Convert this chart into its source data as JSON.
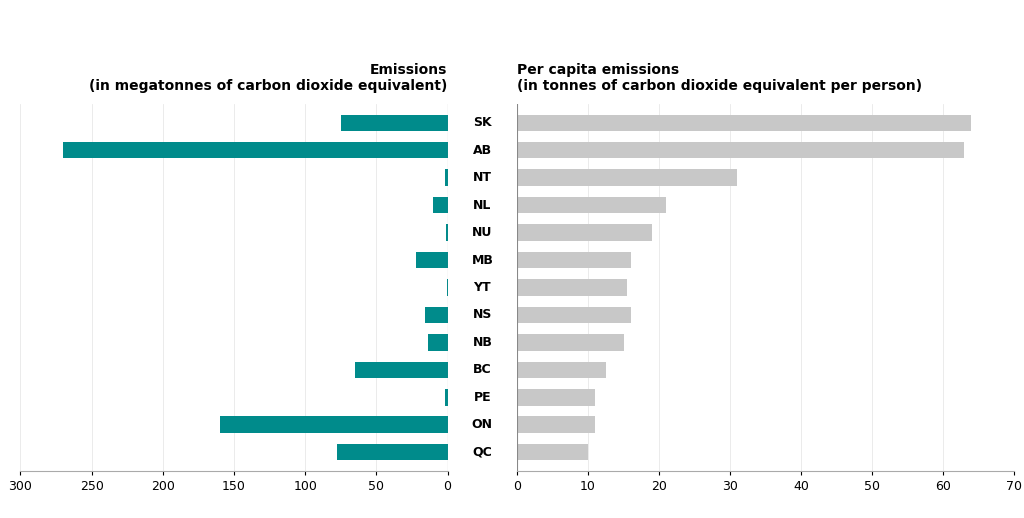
{
  "provinces": [
    "SK",
    "AB",
    "NT",
    "NL",
    "NU",
    "MB",
    "YT",
    "NS",
    "NB",
    "BC",
    "PE",
    "ON",
    "QC"
  ],
  "total_emissions": [
    75,
    270,
    1.5,
    10,
    1.0,
    22,
    0.6,
    16,
    14,
    65,
    2,
    160,
    78
  ],
  "per_capita": [
    64,
    63,
    31,
    21,
    19,
    16,
    15.5,
    16,
    15,
    12.5,
    11,
    11,
    10
  ],
  "teal_color": "#008B8B",
  "gray_color": "#C8C8C8",
  "left_title_line1": "Emissions",
  "left_title_line2": "(in megatonnes of carbon dioxide equivalent)",
  "right_title_line1": "Per capita emissions",
  "right_title_line2": "(in tonnes of carbon dioxide equivalent per person)",
  "left_xticks": [
    300,
    250,
    200,
    150,
    100,
    50,
    0
  ],
  "right_xlim": [
    0,
    70
  ],
  "right_xticks": [
    0,
    10,
    20,
    30,
    40,
    50,
    60,
    70
  ],
  "bar_height": 0.6,
  "background_color": "#ffffff",
  "title_fontsize": 10,
  "tick_fontsize": 9,
  "label_fontsize": 9
}
